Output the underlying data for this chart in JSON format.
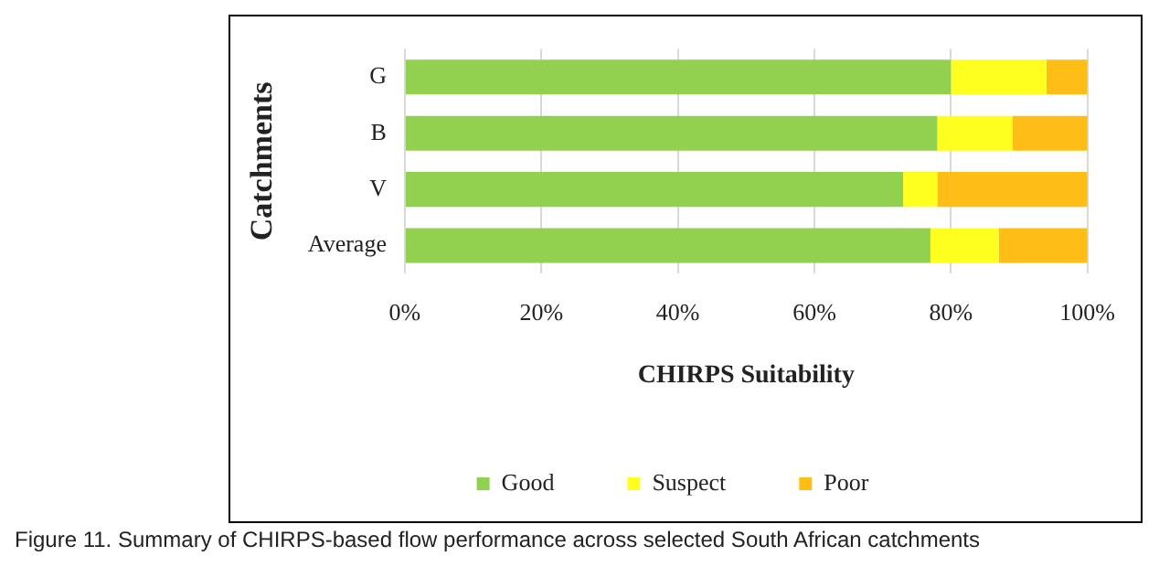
{
  "chart_data": {
    "type": "bar",
    "orientation": "horizontal",
    "stacked": true,
    "xlabel": "CHIRPS Suitability",
    "ylabel": "Catchments",
    "categories": [
      "G",
      "B",
      "V",
      "Average"
    ],
    "series": [
      {
        "name": "Good",
        "color": "#92d050",
        "values": [
          80,
          78,
          73,
          77
        ]
      },
      {
        "name": "Suspect",
        "color": "#ffff1f",
        "values": [
          14,
          11,
          5,
          10
        ]
      },
      {
        "name": "Poor",
        "color": "#ffbe15",
        "values": [
          6,
          11,
          22,
          13
        ]
      }
    ],
    "xlim": [
      0,
      100
    ],
    "xticks": [
      {
        "value": 0,
        "label": "0%"
      },
      {
        "value": 20,
        "label": "20%"
      },
      {
        "value": 40,
        "label": "40%"
      },
      {
        "value": 60,
        "label": "60%"
      },
      {
        "value": 80,
        "label": "80%"
      },
      {
        "value": 100,
        "label": "100%"
      }
    ],
    "grid": "x",
    "legend": "bottom",
    "annotations": [
      "Figure 11. Summary of CHIRPS-based flow performance across selected South African catchments"
    ]
  }
}
